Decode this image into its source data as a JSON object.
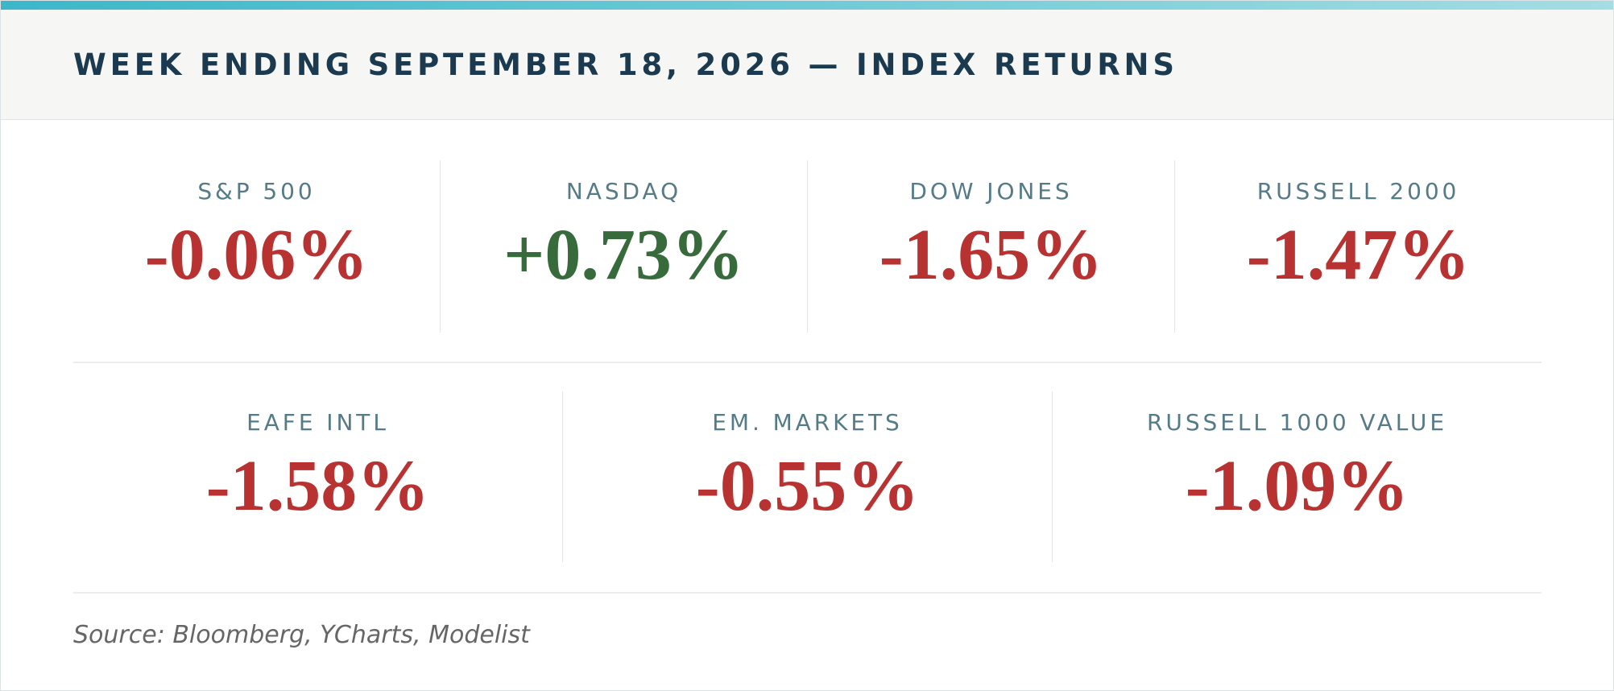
{
  "header": {
    "title": "WEEK ENDING SEPTEMBER 18, 2026 — INDEX RETURNS"
  },
  "rows": [
    [
      {
        "label": "S&P 500",
        "value": "-0.06%",
        "color": "#b83232"
      },
      {
        "label": "NASDAQ",
        "value": "+0.73%",
        "color": "#386b3c"
      },
      {
        "label": "DOW JONES",
        "value": "-1.65%",
        "color": "#b83232"
      },
      {
        "label": "RUSSELL 2000",
        "value": "-1.47%",
        "color": "#b83232"
      }
    ],
    [
      {
        "label": "EAFE INTL",
        "value": "-1.58%",
        "color": "#b83232"
      },
      {
        "label": "EM. MARKETS",
        "value": "-0.55%",
        "color": "#b83232"
      },
      {
        "label": "RUSSELL 1000 VALUE",
        "value": "-1.09%",
        "color": "#b83232"
      }
    ]
  ],
  "footer": {
    "source": "Source: Bloomberg, YCharts, Modelist"
  }
}
